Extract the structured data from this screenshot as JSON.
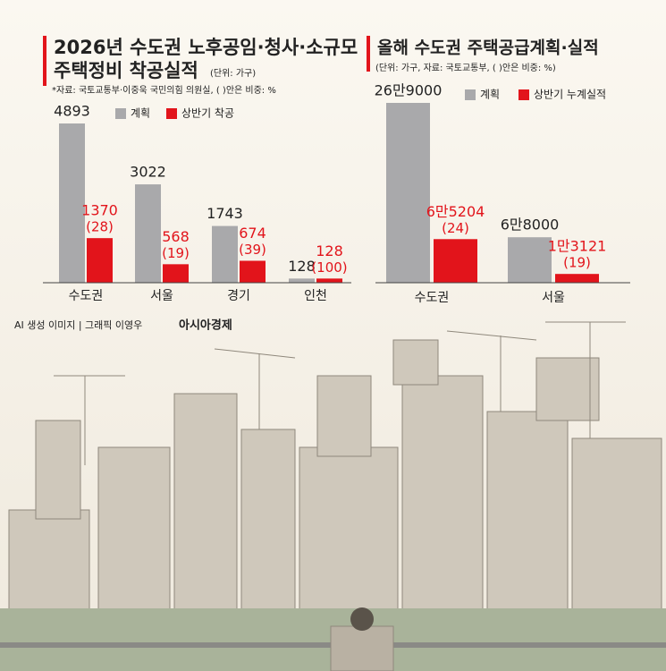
{
  "chart_data": [
    {
      "type": "bar",
      "title": [
        "2026년 수도권 노후공임·청사·소규모",
        "주택정비 착공실적"
      ],
      "unit": "(단위: 가구)",
      "note": "*자료: 국토교통부·이중욱 국민의힘 의원실, ( )안은 비중: %",
      "categories": [
        "수도권",
        "서울",
        "경기",
        "인천"
      ],
      "series": [
        {
          "name": "계획",
          "color": "#a9a9ab",
          "values": [
            4893,
            3022,
            1743,
            128
          ]
        },
        {
          "name": "상반기 착공",
          "color": "#e2141b",
          "values": [
            1370,
            568,
            674,
            128
          ],
          "share_labels": [
            "(28)",
            "(19)",
            "(39)",
            "(100)"
          ]
        }
      ]
    },
    {
      "type": "bar",
      "title": [
        "올해 수도권 주택공급계획·실적"
      ],
      "note": "(단위: 가구, 자료: 국토교통부, ( )안은 비중: %)",
      "categories": [
        "수도권",
        "서울"
      ],
      "series": [
        {
          "name": "계획",
          "color": "#a9a9ab",
          "values": [
            269000,
            68000
          ],
          "value_labels": [
            "26만9000",
            "6만8000"
          ]
        },
        {
          "name": "상반기 누계실적",
          "color": "#e2141b",
          "values": [
            65204,
            13121
          ],
          "value_labels": [
            "6만5204",
            "1만3121"
          ],
          "share_labels": [
            "(24)",
            "(19)"
          ]
        }
      ]
    }
  ],
  "credits": {
    "source": "AI 생성 이미지 | 그래픽 이영우",
    "brand": "아시아경제"
  }
}
